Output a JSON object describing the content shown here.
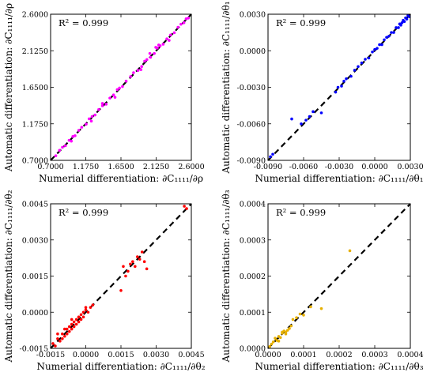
{
  "chart_data": [
    {
      "type": "scatter",
      "annotation": "R² = 0.999",
      "xlabel": "Numerial differentiation: ∂C₁₁₁₁/∂ρ",
      "ylabel": "Automatic differentiation: ∂C₁₁₁₁/∂ρ",
      "xlim": [
        0.7,
        2.6
      ],
      "ylim": [
        0.7,
        2.6
      ],
      "xticks": [
        "0.7000",
        "1.1750",
        "1.6500",
        "2.1250",
        "2.6000"
      ],
      "yticks": [
        "0.7000",
        "1.1750",
        "1.6500",
        "2.1250",
        "2.6000"
      ],
      "tick_values": [
        0.7,
        1.175,
        1.65,
        2.125,
        2.6
      ],
      "color": "#ff00ff",
      "x": [
        0.77,
        0.82,
        0.86,
        0.9,
        0.95,
        1.0,
        1.03,
        1.08,
        1.12,
        1.18,
        1.22,
        1.26,
        1.3,
        1.35,
        1.4,
        1.45,
        1.5,
        1.55,
        1.6,
        1.63,
        1.67,
        1.72,
        1.78,
        1.82,
        1.88,
        1.93,
        1.97,
        2.0,
        2.05,
        2.1,
        2.14,
        2.18,
        2.22,
        2.27,
        2.32,
        2.37,
        2.42,
        2.46,
        2.5,
        2.53,
        2.56,
        1.25,
        1.57,
        1.92,
        2.04,
        2.16,
        2.3,
        0.98,
        1.4,
        2.12
      ],
      "y": [
        0.76,
        0.83,
        0.87,
        0.89,
        0.96,
        1.01,
        1.02,
        1.09,
        1.13,
        1.17,
        1.24,
        1.27,
        1.29,
        1.36,
        1.41,
        1.43,
        1.51,
        1.55,
        1.62,
        1.64,
        1.66,
        1.73,
        1.79,
        1.84,
        1.87,
        1.92,
        1.99,
        2.01,
        2.04,
        2.09,
        2.16,
        2.19,
        2.21,
        2.28,
        2.33,
        2.36,
        2.43,
        2.47,
        2.49,
        2.54,
        2.55,
        1.21,
        1.52,
        1.88,
        2.09,
        2.2,
        2.26,
        0.95,
        1.44,
        2.17
      ],
      "diagonal": "dashed black y = x"
    },
    {
      "type": "scatter",
      "annotation": "R² = 0.999",
      "xlabel": "Numerial differentiation: ∂C₁₁₁₁/∂θ₁",
      "ylabel": "Automatic differentiation: ∂C₁₁₁₁/∂θ₁",
      "xlim": [
        -0.009,
        0.003
      ],
      "ylim": [
        -0.009,
        0.003
      ],
      "xticks": [
        "-0.0090",
        "-0.0060",
        "-0.0030",
        "0.0000",
        "0.0030"
      ],
      "yticks": [
        "-0.0090",
        "-0.0060",
        "-0.0030",
        "0.0000",
        "0.0030"
      ],
      "tick_values": [
        -0.009,
        -0.006,
        -0.003,
        0.0,
        0.003
      ],
      "color": "#0000ff",
      "x": [
        -0.0088,
        -0.0086,
        -0.0062,
        -0.0058,
        -0.0055,
        -0.0052,
        -0.0045,
        -0.0033,
        -0.0031,
        -0.0028,
        -0.0026,
        -0.0024,
        -0.002,
        -0.0017,
        -0.0014,
        -0.0011,
        -0.0008,
        -0.0005,
        -0.0002,
        0.0,
        0.0002,
        0.0004,
        0.0006,
        0.0008,
        0.001,
        0.0012,
        0.0014,
        0.0016,
        0.0018,
        0.002,
        0.0021,
        0.0022,
        0.0023,
        0.0024,
        0.0025,
        0.0026,
        0.0027,
        0.0028,
        0.0029,
        -0.007
      ],
      "y": [
        -0.0087,
        -0.0085,
        -0.006,
        -0.0057,
        -0.0054,
        -0.005,
        -0.0051,
        -0.0034,
        -0.003,
        -0.0029,
        -0.0025,
        -0.0023,
        -0.0021,
        -0.0016,
        -0.0013,
        -0.001,
        -0.0007,
        -0.0006,
        -0.0001,
        0.0001,
        0.0002,
        0.0005,
        0.0005,
        0.0009,
        0.0011,
        0.0012,
        0.0015,
        0.0015,
        0.0019,
        0.0019,
        0.0022,
        0.0021,
        0.0023,
        0.0025,
        0.0024,
        0.0027,
        0.0026,
        0.0029,
        0.0028,
        -0.0056
      ],
      "diagonal": "dashed black y = x"
    },
    {
      "type": "scatter",
      "annotation": "R² = 0.999",
      "xlabel": "Numerial differentiation: ∂C₁₁₁₁/∂θ₂",
      "ylabel": "Automatic differentiation: ∂C₁₁₁₁/∂θ₂",
      "xlim": [
        -0.0015,
        0.0045
      ],
      "ylim": [
        -0.0015,
        0.0045
      ],
      "xticks": [
        "-0.0015",
        "0.0000",
        "0.0015",
        "0.0030",
        "0.0045"
      ],
      "yticks": [
        "-0.0015",
        "0.0000",
        "0.0015",
        "0.0030",
        "0.0045"
      ],
      "tick_values": [
        -0.0015,
        0.0,
        0.0015,
        0.003,
        0.0045
      ],
      "color": "#ff0000",
      "x": [
        -0.0014,
        -0.0013,
        -0.0012,
        -0.0011,
        -0.001,
        -0.001,
        -0.0009,
        -0.0008,
        -0.0008,
        -0.0007,
        -0.0007,
        -0.0006,
        -0.0006,
        -0.0005,
        -0.0005,
        -0.0004,
        -0.0004,
        -0.0003,
        -0.0003,
        -0.0002,
        -0.0002,
        -0.0001,
        -0.0001,
        0.0,
        0.0001,
        0.0002,
        0.0003,
        0.0016,
        0.0018,
        0.0019,
        0.002,
        0.0021,
        0.0022,
        0.0023,
        0.0024,
        0.0025,
        0.0015,
        0.0017,
        0.0042,
        0.0043,
        -0.0012,
        -0.0009,
        -0.0006,
        -0.0003,
        0.0,
        0.0026
      ],
      "y": [
        -0.0013,
        -0.0014,
        -0.0011,
        -0.0012,
        -0.0009,
        -0.0011,
        -0.001,
        -0.0007,
        -0.0009,
        -0.0006,
        -0.0008,
        -0.0005,
        -0.0007,
        -0.0004,
        -0.0006,
        -0.0003,
        -0.0005,
        -0.0002,
        -0.0004,
        -0.0001,
        -0.0003,
        0.0,
        -0.0002,
        0.0001,
        0.0,
        0.0002,
        0.0003,
        0.0019,
        0.0017,
        0.002,
        0.0021,
        0.0019,
        0.0023,
        0.0022,
        0.0025,
        0.0021,
        0.0009,
        0.0015,
        0.0044,
        0.0043,
        -0.0009,
        -0.0007,
        -0.0003,
        -0.0002,
        0.0002,
        0.0018
      ],
      "diagonal": "dashed black y = x"
    },
    {
      "type": "scatter",
      "annotation": "R² = 0.999",
      "xlabel": "Numerial differentiation: ∂C₁₁₁₁/∂θ₃",
      "ylabel": "Automatic differentiation: ∂C₁₁₁₁/∂θ₃",
      "xlim": [
        0.0,
        0.0004
      ],
      "ylim": [
        0.0,
        0.0004
      ],
      "xticks": [
        "0.0000",
        "0.0001",
        "0.0002",
        "0.0003",
        "0.0004"
      ],
      "yticks": [
        "0.0000",
        "0.0001",
        "0.0002",
        "0.0003",
        "0.0004"
      ],
      "tick_values": [
        0.0,
        0.0001,
        0.0002,
        0.0003,
        0.0004
      ],
      "color": "#e6b000",
      "x": [
        5e-06,
        1e-05,
        1.5e-05,
        2e-05,
        2.5e-05,
        3e-05,
        3.5e-05,
        4e-05,
        4.5e-05,
        5e-05,
        5.5e-05,
        6e-05,
        6.5e-05,
        7e-05,
        8e-05,
        9e-05,
        0.0001,
        0.00012,
        0.00015,
        0.00023,
        3e-05,
        4e-05,
        5e-05
      ],
      "y": [
        5e-06,
        1.2e-05,
        1.8e-05,
        2.8e-05,
        2.2e-05,
        3.3e-05,
        3e-05,
        4.2e-05,
        4.8e-05,
        4.5e-05,
        5e-05,
        5.5e-05,
        6.2e-05,
        8e-05,
        8.5e-05,
        9.5e-05,
        9.2e-05,
        0.000115,
        0.00011,
        0.00027,
        2e-05,
        4.5e-05,
        4e-05
      ],
      "diagonal": "dashed black y = x"
    }
  ]
}
